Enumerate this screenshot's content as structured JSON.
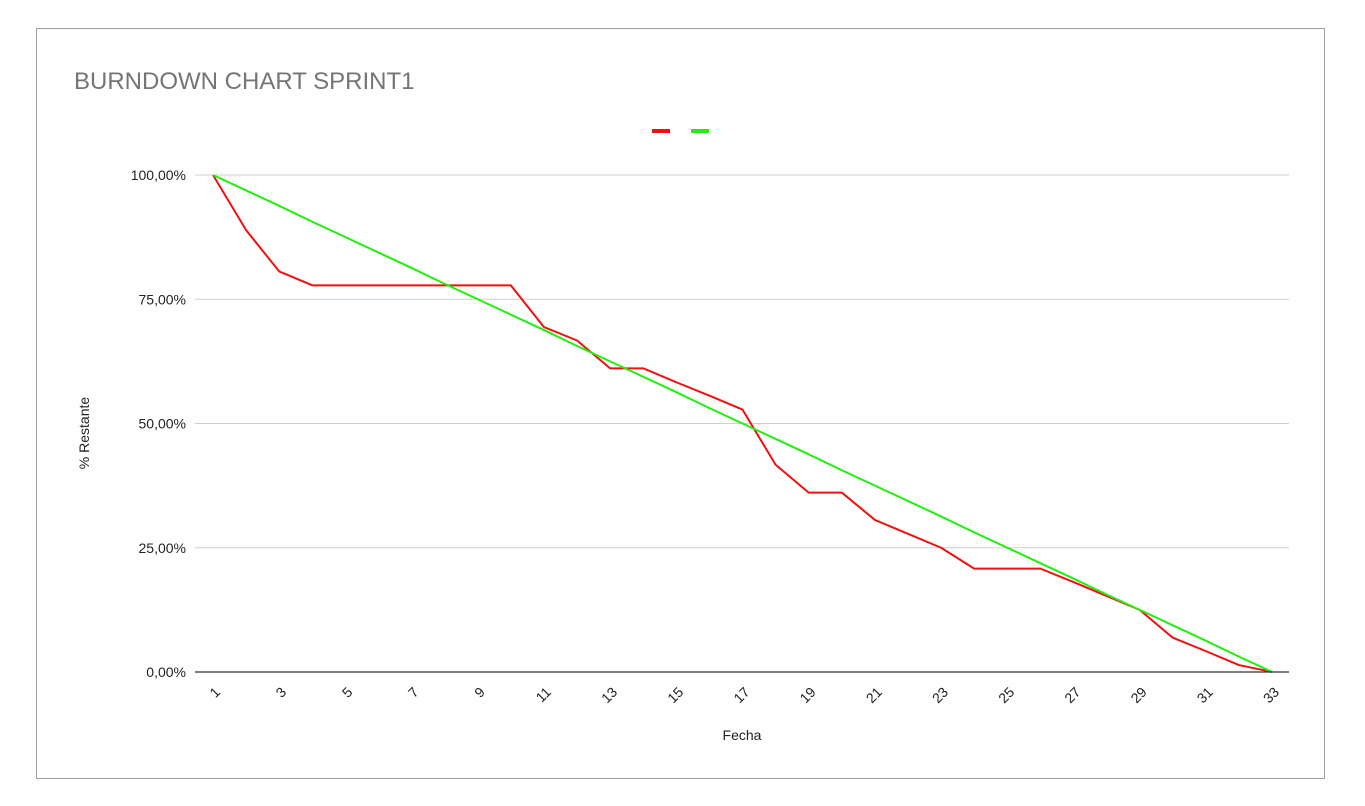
{
  "chart_data": {
    "type": "line",
    "title": "BURNDOWN CHART SPRINT1",
    "xlabel": "Fecha",
    "ylabel": "% Restante",
    "ylim": [
      0,
      100
    ],
    "xlim": [
      1,
      33
    ],
    "grid": true,
    "legend_position": "top-center",
    "y_ticks": [
      "0,00%",
      "25,00%",
      "50,00%",
      "75,00%",
      "100,00%"
    ],
    "y_tick_values": [
      0,
      25,
      50,
      75,
      100
    ],
    "x_ticks": [
      "1",
      "3",
      "5",
      "7",
      "9",
      "11",
      "13",
      "15",
      "17",
      "19",
      "21",
      "23",
      "25",
      "27",
      "29",
      "31",
      "33"
    ],
    "x": [
      1,
      2,
      3,
      4,
      5,
      6,
      7,
      8,
      9,
      10,
      11,
      12,
      13,
      14,
      15,
      16,
      17,
      18,
      19,
      20,
      21,
      22,
      23,
      24,
      25,
      26,
      27,
      28,
      29,
      30,
      31,
      32,
      33
    ],
    "series": [
      {
        "color": "#ee1111",
        "values": [
          100,
          88.9,
          80.6,
          77.8,
          77.8,
          77.8,
          77.8,
          77.8,
          77.8,
          77.8,
          69.4,
          66.7,
          61.1,
          61.1,
          58.3,
          55.6,
          52.8,
          41.7,
          36.1,
          36.1,
          30.6,
          27.8,
          25.0,
          20.8,
          20.8,
          20.8,
          18.1,
          15.3,
          12.5,
          6.9,
          4.2,
          1.4,
          0
        ]
      },
      {
        "color": "#22ee11",
        "values": [
          100,
          96.9,
          93.8,
          90.6,
          87.5,
          84.4,
          81.3,
          78.1,
          75.0,
          71.9,
          68.8,
          65.6,
          62.5,
          59.4,
          56.3,
          53.1,
          50.0,
          46.9,
          43.8,
          40.6,
          37.5,
          34.4,
          31.3,
          28.1,
          25.0,
          21.9,
          18.8,
          15.6,
          12.5,
          9.4,
          6.3,
          3.1,
          0
        ]
      }
    ]
  }
}
